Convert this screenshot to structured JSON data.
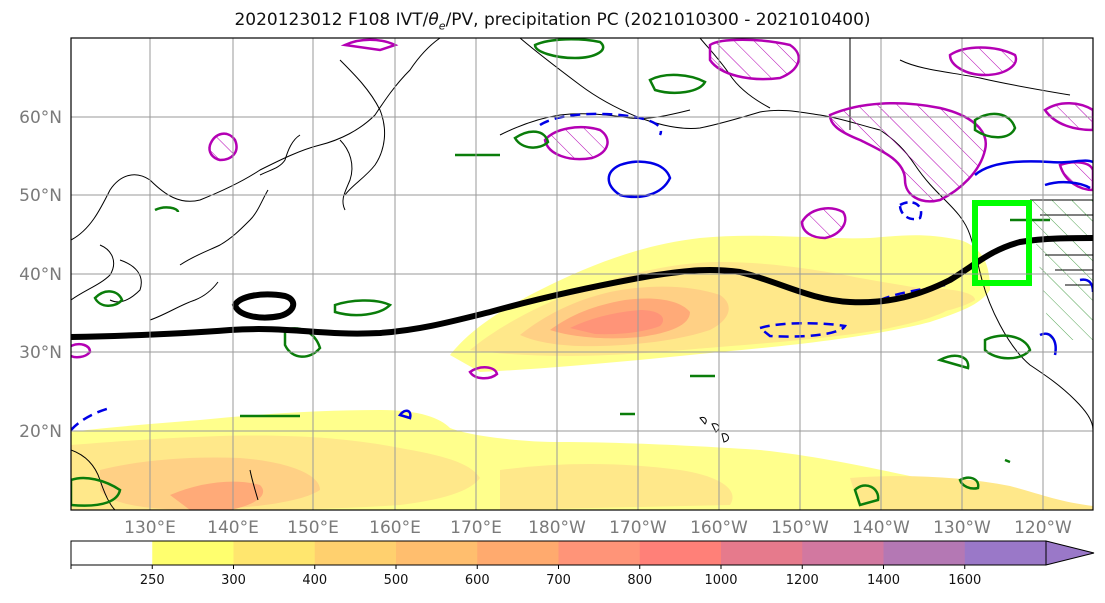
{
  "title": {
    "prefix": "2020123012 F108 IVT/",
    "theta": "θ",
    "theta_sub": "e",
    "suffix": "/PV, precipitation PC (2021010300 - 2021010400)"
  },
  "map": {
    "lat_labels": [
      "60°N",
      "50°N",
      "40°N",
      "30°N",
      "20°N"
    ],
    "lon_labels": [
      "130°E",
      "140°E",
      "150°E",
      "160°E",
      "170°E",
      "180°W",
      "170°W",
      "160°W",
      "150°W",
      "140°W",
      "130°W",
      "120°W"
    ],
    "colors": {
      "land_outline": "#000000",
      "ivt_green": "#0a7d0a",
      "theta_blue": "#0000e6",
      "pv_magenta": "#b400b4",
      "target_box": "#00ff00",
      "jet_line": "#000000",
      "grid": "#9a9a9a"
    },
    "target_box_label": ""
  },
  "colorbar": {
    "ticks": [
      "250",
      "300",
      "400",
      "500",
      "600",
      "700",
      "800",
      "1000",
      "1200",
      "1400",
      "1600"
    ],
    "colors": [
      "#ffffff",
      "#ffff6e",
      "#ffe66e",
      "#ffd06e",
      "#ffbe6e",
      "#ffaa6e",
      "#ff9478",
      "#ff8078",
      "#e67a8c",
      "#d278a0",
      "#b478b4",
      "#9a78c8"
    ]
  }
}
